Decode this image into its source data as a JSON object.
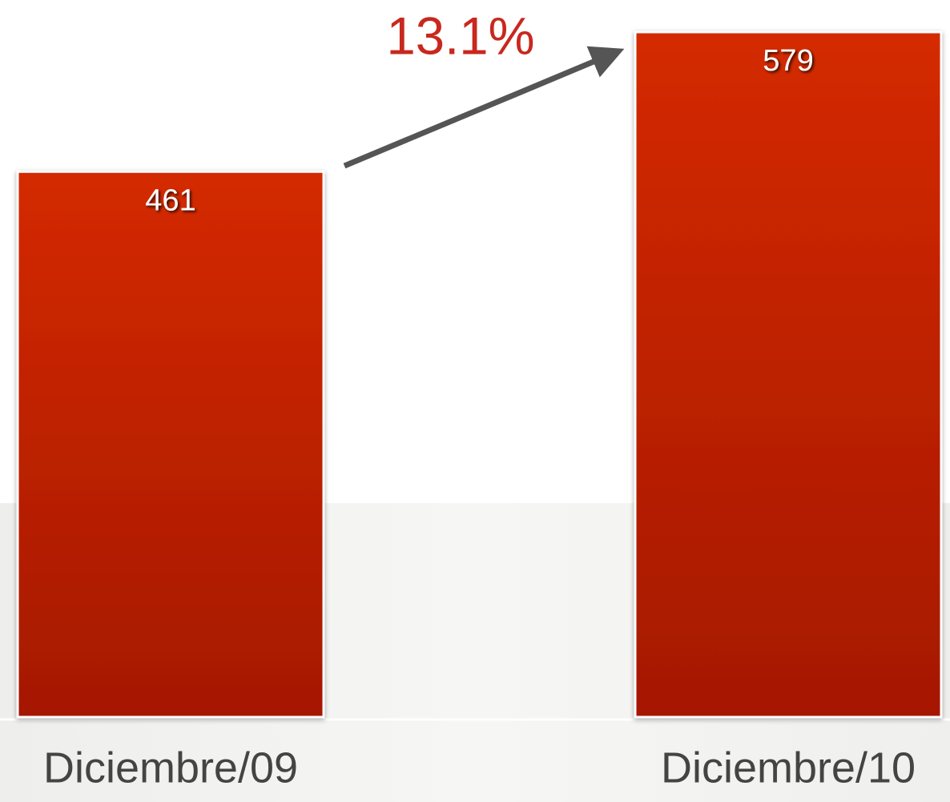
{
  "chart_data": {
    "type": "bar",
    "categories": [
      "Diciembre/09",
      "Diciembre/10"
    ],
    "values": [
      461,
      579
    ],
    "color": "#c42200",
    "annotation": "13.1%"
  }
}
